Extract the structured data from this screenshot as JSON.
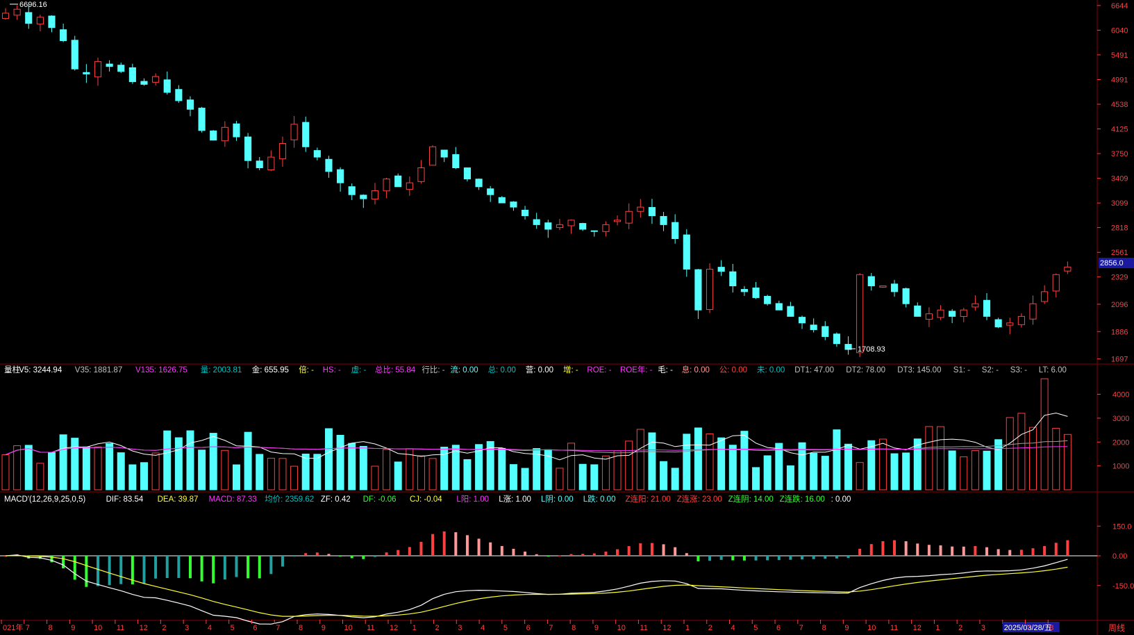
{
  "colors": {
    "up": "#ff4040",
    "down": "#54ffff",
    "grid": "#8b0000",
    "axis_text": "#ff4040",
    "white": "#ffffff",
    "yellow": "#ffff33",
    "magenta": "#ff33ff",
    "green": "#33ff33",
    "pink": "#ff9999"
  },
  "price_axis": {
    "ticks": [
      "6644",
      "6040",
      "5491",
      "4991",
      "4538",
      "4125",
      "3750",
      "3409",
      "3099",
      "2818",
      "2561",
      "2329",
      "2096",
      "1886",
      "1697"
    ],
    "current_price": "2856.0",
    "high_label": "6696.16",
    "low_label": "1708.93",
    "log_scale": true
  },
  "volume_axis": {
    "ticks": [
      "4000",
      "3000",
      "2000",
      "1000"
    ]
  },
  "macd_axis": {
    "ticks": [
      "150.0",
      "0.00",
      "-150.0"
    ]
  },
  "volume_header": [
    {
      "text": "量柱",
      "color": "#ffffff"
    },
    {
      "text": "V5: 3244.94",
      "color": "#ffffff"
    },
    {
      "text": "V35: 1881.87",
      "color": "#c0c0c0"
    },
    {
      "text": "V135: 1626.75",
      "color": "#ff33ff"
    },
    {
      "text": "量: 2003.81",
      "color": "#00c0c0"
    },
    {
      "text": "金: 655.95",
      "color": "#ffffff"
    },
    {
      "text": "倍: -",
      "color": "#ffff33"
    },
    {
      "text": "HS: -",
      "color": "#ff33ff"
    },
    {
      "text": "虚: -",
      "color": "#00c0c0"
    },
    {
      "text": "总比: 55.84",
      "color": "#ff33ff"
    },
    {
      "text": "行比: -",
      "color": "#c0c0c0"
    },
    {
      "text": "流: 0.00",
      "color": "#54ffff"
    },
    {
      "text": "总: 0.00",
      "color": "#00c0c0"
    },
    {
      "text": "营: 0.00",
      "color": "#ffffff"
    },
    {
      "text": "增: -",
      "color": "#ffff33"
    },
    {
      "text": "ROE: -",
      "color": "#ff33ff"
    },
    {
      "text": "ROE年: -",
      "color": "#ff33ff"
    },
    {
      "text": "毛: -",
      "color": "#ffffff"
    },
    {
      "text": "息: 0.00",
      "color": "#ff9999"
    },
    {
      "text": "公: 0.00",
      "color": "#ff4040"
    },
    {
      "text": "未: 0.00",
      "color": "#00c0c0"
    },
    {
      "text": "DT1: 47.00",
      "color": "#c0c0c0"
    },
    {
      "text": "DT2: 78.00",
      "color": "#c0c0c0"
    },
    {
      "text": "DT3: 145.00",
      "color": "#c0c0c0"
    },
    {
      "text": "S1: -",
      "color": "#c0c0c0"
    },
    {
      "text": "S2: -",
      "color": "#c0c0c0"
    },
    {
      "text": "S3: -",
      "color": "#c0c0c0"
    },
    {
      "text": "LT: 6.00",
      "color": "#c0c0c0"
    }
  ],
  "macd_header": [
    {
      "text": "MACD'(12,26,9,25,0,5)",
      "color": "#ffffff"
    },
    {
      "text": "DIF: 83.54",
      "color": "#ffffff"
    },
    {
      "text": "DEA: 39.87",
      "color": "#ffff33"
    },
    {
      "text": "MACD: 87.33",
      "color": "#ff33ff"
    },
    {
      "text": "均价: 2359.62",
      "color": "#00c0c0"
    },
    {
      "text": "ZF: 0.42",
      "color": "#ffffff"
    },
    {
      "text": "DF: -0.06",
      "color": "#33ff33"
    },
    {
      "text": "CJ: -0.04",
      "color": "#ffff33"
    },
    {
      "text": "L阳: 1.00",
      "color": "#ff33ff"
    },
    {
      "text": "L涨: 1.00",
      "color": "#ffffff"
    },
    {
      "text": "L阴: 0.00",
      "color": "#54ffff"
    },
    {
      "text": "L跌: 0.00",
      "color": "#54ffff"
    },
    {
      "text": "Z连阳: 21.00",
      "color": "#ff4040"
    },
    {
      "text": "Z连涨: 23.00",
      "color": "#ff4040"
    },
    {
      "text": "Z连阴: 14.00",
      "color": "#33ff33"
    },
    {
      "text": "Z连跌: 16.00",
      "color": "#33ff33"
    },
    {
      "text": ": 0.00",
      "color": "#ffffff"
    }
  ],
  "time_axis": {
    "labels": [
      "021年",
      "7",
      "8",
      "9",
      "10",
      "11",
      "12",
      "2",
      "3",
      "4",
      "5",
      "6",
      "7",
      "8",
      "9",
      "10",
      "11",
      "12",
      "1",
      "2",
      "3",
      "4",
      "5",
      "6",
      "7",
      "8",
      "9",
      "10",
      "11",
      "12",
      "1",
      "2",
      "4",
      "5",
      "6",
      "7",
      "8",
      "9",
      "10",
      "11",
      "12",
      "1",
      "2",
      "3",
      "2025/03/28/五",
      "7",
      "8"
    ],
    "period": "周线"
  },
  "chart_data": {
    "type": "candlestick",
    "period": "周线",
    "price_high": 6696.16,
    "price_low": 1708.93,
    "current_price": 2856.0,
    "close_path": [
      6450,
      6550,
      6200,
      6350,
      6100,
      5800,
      5200,
      5100,
      5350,
      5250,
      5150,
      4950,
      4900,
      5050,
      4750,
      4600,
      4450,
      4100,
      3950,
      4150,
      4000,
      3650,
      3550,
      3700,
      3900,
      4200,
      3850,
      3700,
      3500,
      3350,
      3200,
      3150,
      3250,
      3400,
      3300,
      3350,
      3550,
      3850,
      3700,
      3550,
      3400,
      3300,
      3200,
      3100,
      3050,
      2950,
      2850,
      2800,
      2850,
      2900,
      2800,
      2780,
      2850,
      2900,
      3000,
      3050,
      2950,
      2850,
      2700,
      2400,
      2050,
      2400,
      2380,
      2250,
      2200,
      2150,
      2100,
      2050,
      2000,
      1950,
      1900,
      1850,
      1800,
      1760,
      2350,
      2250,
      2250,
      2200,
      2100,
      2000,
      2020,
      2050,
      2000,
      2050,
      2100,
      2000,
      1920,
      1950,
      2000,
      2100,
      2200,
      2350,
      2420
    ],
    "volume_ma": {
      "V5": 3244.94,
      "V35": 1881.87,
      "V135": 1626.75
    },
    "macd": {
      "DIF": 83.54,
      "DEA": 39.87,
      "MACD": 87.33
    }
  }
}
